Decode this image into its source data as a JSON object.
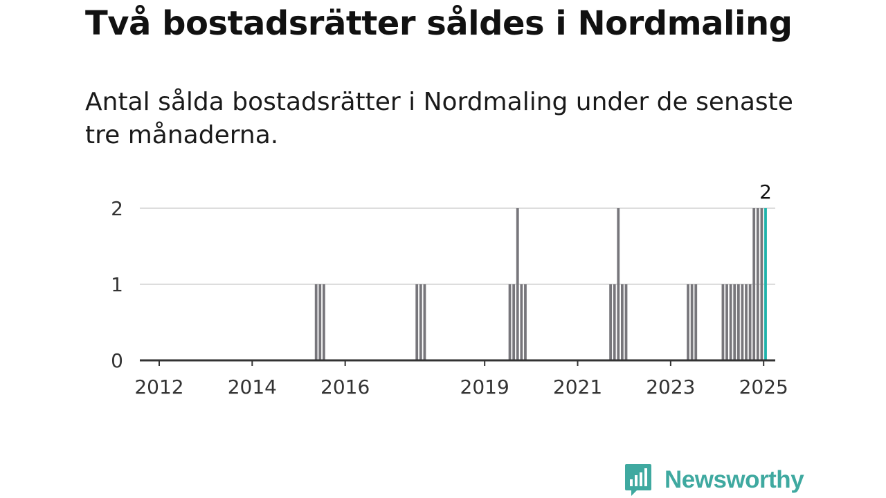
{
  "title": "Två bostadsrätter såldes i Nordmaling",
  "subtitle": "Antal sålda bostadsrätter i Nordmaling under de senaste tre månaderna.",
  "logo": {
    "name": "Newsworthy",
    "icon": "bar-chart-speech-bubble-icon",
    "color": "#3fa9a0"
  },
  "chart_data": {
    "type": "bar",
    "title": "Två bostadsrätter såldes i Nordmaling",
    "xlabel": "",
    "ylabel": "",
    "ylim": [
      0,
      2
    ],
    "xlim": [
      "2011-08",
      "2025-04"
    ],
    "yticks": [
      0,
      1,
      2
    ],
    "xticks": [
      "2012",
      "2014",
      "2016",
      "2019",
      "2021",
      "2023",
      "2025"
    ],
    "grid": true,
    "legend": "none",
    "colors": {
      "bar": "#77767b",
      "highlight": "#1fb3ab",
      "grid": "#dddddd",
      "axis": "#333333"
    },
    "annotation": {
      "month": "2025-01",
      "text": "2"
    },
    "highlight_month": "2025-01",
    "bars": [
      {
        "month": "2015-05",
        "value": 1
      },
      {
        "month": "2015-06",
        "value": 1
      },
      {
        "month": "2015-07",
        "value": 1
      },
      {
        "month": "2017-07",
        "value": 1
      },
      {
        "month": "2017-08",
        "value": 1
      },
      {
        "month": "2017-09",
        "value": 1
      },
      {
        "month": "2019-07",
        "value": 1
      },
      {
        "month": "2019-08",
        "value": 1
      },
      {
        "month": "2019-09",
        "value": 2
      },
      {
        "month": "2019-10",
        "value": 1
      },
      {
        "month": "2019-11",
        "value": 1
      },
      {
        "month": "2021-09",
        "value": 1
      },
      {
        "month": "2021-10",
        "value": 1
      },
      {
        "month": "2021-11",
        "value": 2
      },
      {
        "month": "2021-12",
        "value": 1
      },
      {
        "month": "2022-01",
        "value": 1
      },
      {
        "month": "2023-05",
        "value": 1
      },
      {
        "month": "2023-06",
        "value": 1
      },
      {
        "month": "2023-07",
        "value": 1
      },
      {
        "month": "2024-02",
        "value": 1
      },
      {
        "month": "2024-03",
        "value": 1
      },
      {
        "month": "2024-04",
        "value": 1
      },
      {
        "month": "2024-05",
        "value": 1
      },
      {
        "month": "2024-06",
        "value": 1
      },
      {
        "month": "2024-07",
        "value": 1
      },
      {
        "month": "2024-08",
        "value": 1
      },
      {
        "month": "2024-09",
        "value": 1
      },
      {
        "month": "2024-10",
        "value": 2
      },
      {
        "month": "2024-11",
        "value": 2
      },
      {
        "month": "2024-12",
        "value": 2
      },
      {
        "month": "2025-01",
        "value": 2
      }
    ]
  }
}
